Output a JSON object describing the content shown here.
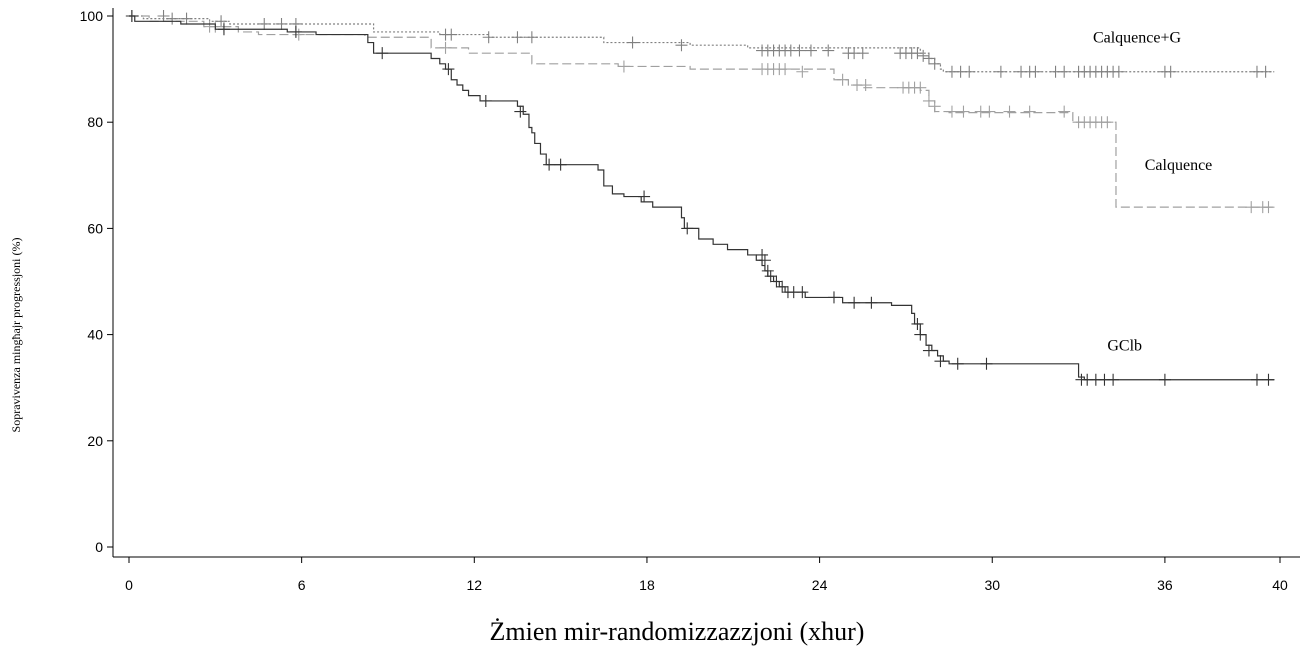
{
  "chart_data": {
    "type": "line",
    "title": "",
    "xlabel": "Żmien mir-randomizzazzjoni (xhur)",
    "ylabel": "Sopravivenza mingħajr progressjoni (%)",
    "xlim": [
      0,
      40
    ],
    "ylim": [
      0,
      100
    ],
    "xticks": [
      0,
      6,
      12,
      18,
      24,
      30,
      36,
      40
    ],
    "yticks": [
      0,
      20,
      40,
      60,
      80,
      100
    ],
    "grid": false,
    "legend": "inline labels next to each curve",
    "series": [
      {
        "name": "Calquence+G",
        "color": "#808080",
        "dash": "dotted",
        "steps": [
          [
            0,
            100
          ],
          [
            0.5,
            99.5
          ],
          [
            2.8,
            99
          ],
          [
            3.5,
            98.5
          ],
          [
            8.5,
            97
          ],
          [
            10.8,
            96.5
          ],
          [
            12.5,
            96
          ],
          [
            16.5,
            95
          ],
          [
            19.5,
            94.5
          ],
          [
            21.5,
            94
          ],
          [
            27.5,
            93
          ],
          [
            27.8,
            92
          ],
          [
            28.0,
            91
          ],
          [
            28.2,
            90
          ],
          [
            28.3,
            89.5
          ],
          [
            39.8,
            89.5
          ]
        ],
        "censors": [
          [
            0.1,
            100
          ],
          [
            1.2,
            100
          ],
          [
            1.5,
            99.5
          ],
          [
            2.0,
            99.5
          ],
          [
            3.2,
            99
          ],
          [
            4.7,
            98.5
          ],
          [
            5.3,
            98.5
          ],
          [
            5.8,
            98.5
          ],
          [
            11.0,
            96.5
          ],
          [
            11.2,
            96.5
          ],
          [
            12.5,
            96
          ],
          [
            13.5,
            96
          ],
          [
            14.0,
            96
          ],
          [
            17.5,
            95
          ],
          [
            19.2,
            94.5
          ],
          [
            22.0,
            93.5
          ],
          [
            22.2,
            93.5
          ],
          [
            22.4,
            93.5
          ],
          [
            22.6,
            93.5
          ],
          [
            22.8,
            93.5
          ],
          [
            23.0,
            93.5
          ],
          [
            23.3,
            93.5
          ],
          [
            23.7,
            93.5
          ],
          [
            24.3,
            93.5
          ],
          [
            25.0,
            93
          ],
          [
            25.2,
            93
          ],
          [
            25.5,
            93
          ],
          [
            26.8,
            93
          ],
          [
            27.0,
            93
          ],
          [
            27.2,
            93
          ],
          [
            27.4,
            93
          ],
          [
            27.6,
            92.5
          ],
          [
            27.8,
            92
          ],
          [
            28.0,
            91
          ],
          [
            28.6,
            89.5
          ],
          [
            28.9,
            89.5
          ],
          [
            29.2,
            89.5
          ],
          [
            30.3,
            89.5
          ],
          [
            31.0,
            89.5
          ],
          [
            31.3,
            89.5
          ],
          [
            31.5,
            89.5
          ],
          [
            32.2,
            89.5
          ],
          [
            32.5,
            89.5
          ],
          [
            33.0,
            89.5
          ],
          [
            33.2,
            89.5
          ],
          [
            33.4,
            89.5
          ],
          [
            33.6,
            89.5
          ],
          [
            33.8,
            89.5
          ],
          [
            34.0,
            89.5
          ],
          [
            34.2,
            89.5
          ],
          [
            34.4,
            89.5
          ],
          [
            36.0,
            89.5
          ],
          [
            36.2,
            89.5
          ],
          [
            39.2,
            89.5
          ],
          [
            39.5,
            89.5
          ]
        ]
      },
      {
        "name": "Calquence",
        "color": "#a0a0a0",
        "dash": "dashed",
        "steps": [
          [
            0,
            100
          ],
          [
            0.7,
            99
          ],
          [
            2.6,
            98
          ],
          [
            3.8,
            97
          ],
          [
            4.5,
            96.5
          ],
          [
            8.2,
            96
          ],
          [
            10.5,
            94
          ],
          [
            11.8,
            93
          ],
          [
            14.0,
            91
          ],
          [
            17.0,
            90.5
          ],
          [
            19.5,
            90
          ],
          [
            24.5,
            88
          ],
          [
            25.0,
            87
          ],
          [
            25.5,
            86.5
          ],
          [
            27.5,
            86
          ],
          [
            27.8,
            84
          ],
          [
            28.0,
            82
          ],
          [
            28.5,
            81.8
          ],
          [
            32.8,
            80
          ],
          [
            34.3,
            80
          ],
          [
            34.3,
            64
          ],
          [
            39.8,
            64
          ]
        ],
        "censors": [
          [
            2.8,
            98
          ],
          [
            3.0,
            98
          ],
          [
            3.3,
            98
          ],
          [
            5.9,
            96.5
          ],
          [
            11.0,
            94
          ],
          [
            17.2,
            90.5
          ],
          [
            22.0,
            90
          ],
          [
            22.2,
            90
          ],
          [
            22.4,
            90
          ],
          [
            22.6,
            90
          ],
          [
            22.8,
            90
          ],
          [
            23.4,
            89.5
          ],
          [
            24.8,
            88
          ],
          [
            25.3,
            87
          ],
          [
            25.6,
            87
          ],
          [
            26.9,
            86.5
          ],
          [
            27.1,
            86.5
          ],
          [
            27.3,
            86.5
          ],
          [
            27.5,
            86.5
          ],
          [
            27.8,
            84
          ],
          [
            28.0,
            83
          ],
          [
            28.6,
            82
          ],
          [
            29.0,
            82
          ],
          [
            29.6,
            82
          ],
          [
            29.9,
            82
          ],
          [
            30.6,
            82
          ],
          [
            31.3,
            82
          ],
          [
            32.5,
            82
          ],
          [
            33.0,
            80
          ],
          [
            33.2,
            80
          ],
          [
            33.4,
            80
          ],
          [
            33.6,
            80
          ],
          [
            33.8,
            80
          ],
          [
            34.0,
            80
          ],
          [
            39.0,
            64
          ],
          [
            39.4,
            64
          ],
          [
            39.6,
            64
          ]
        ]
      },
      {
        "name": "GClb",
        "color": "#333333",
        "dash": "solid",
        "steps": [
          [
            0,
            100
          ],
          [
            0.2,
            99
          ],
          [
            1.8,
            98.5
          ],
          [
            3.0,
            97.5
          ],
          [
            5.5,
            97
          ],
          [
            6.5,
            96.5
          ],
          [
            8.3,
            95
          ],
          [
            8.5,
            93
          ],
          [
            10.5,
            92
          ],
          [
            10.8,
            91
          ],
          [
            11.0,
            90
          ],
          [
            11.2,
            88
          ],
          [
            11.4,
            87
          ],
          [
            11.6,
            86
          ],
          [
            11.8,
            85
          ],
          [
            12.2,
            84
          ],
          [
            13.5,
            83
          ],
          [
            13.7,
            81.5
          ],
          [
            13.9,
            79
          ],
          [
            14.0,
            78
          ],
          [
            14.1,
            76
          ],
          [
            14.3,
            74
          ],
          [
            14.5,
            72
          ],
          [
            16.3,
            71
          ],
          [
            16.5,
            68
          ],
          [
            16.8,
            66.5
          ],
          [
            17.2,
            66
          ],
          [
            17.8,
            65
          ],
          [
            18.2,
            64
          ],
          [
            19.2,
            62
          ],
          [
            19.3,
            60
          ],
          [
            19.8,
            58
          ],
          [
            20.3,
            57
          ],
          [
            20.8,
            56
          ],
          [
            21.5,
            55
          ],
          [
            21.8,
            54
          ],
          [
            22.0,
            53
          ],
          [
            22.1,
            52
          ],
          [
            22.2,
            51
          ],
          [
            22.4,
            50
          ],
          [
            22.6,
            49
          ],
          [
            22.8,
            48
          ],
          [
            23.5,
            47
          ],
          [
            24.8,
            46
          ],
          [
            26.5,
            45.5
          ],
          [
            27.2,
            44
          ],
          [
            27.3,
            42
          ],
          [
            27.5,
            40
          ],
          [
            27.7,
            38
          ],
          [
            27.9,
            37
          ],
          [
            28.1,
            36
          ],
          [
            28.3,
            35
          ],
          [
            28.5,
            34.5
          ],
          [
            32.8,
            34.5
          ],
          [
            33.0,
            32
          ],
          [
            33.2,
            31.5
          ],
          [
            39.8,
            31.5
          ]
        ],
        "censors": [
          [
            0.1,
            100
          ],
          [
            3.3,
            97.5
          ],
          [
            5.8,
            97
          ],
          [
            8.8,
            93
          ],
          [
            11.1,
            90
          ],
          [
            12.4,
            84
          ],
          [
            13.6,
            82
          ],
          [
            14.6,
            72
          ],
          [
            15.0,
            72
          ],
          [
            17.9,
            66
          ],
          [
            19.4,
            60
          ],
          [
            22.0,
            55
          ],
          [
            22.1,
            54
          ],
          [
            22.2,
            52
          ],
          [
            22.3,
            51
          ],
          [
            22.5,
            50
          ],
          [
            22.7,
            49
          ],
          [
            22.9,
            48
          ],
          [
            23.1,
            48
          ],
          [
            23.4,
            48
          ],
          [
            24.5,
            47
          ],
          [
            25.2,
            46
          ],
          [
            25.8,
            46
          ],
          [
            27.4,
            42
          ],
          [
            27.5,
            40
          ],
          [
            27.8,
            37
          ],
          [
            28.2,
            35
          ],
          [
            28.8,
            34.5
          ],
          [
            29.8,
            34.5
          ],
          [
            33.1,
            31.5
          ],
          [
            33.3,
            31.5
          ],
          [
            33.6,
            31.5
          ],
          [
            33.9,
            31.5
          ],
          [
            34.2,
            31.5
          ],
          [
            36.0,
            31.5
          ],
          [
            39.2,
            31.5
          ],
          [
            39.6,
            31.5
          ]
        ]
      }
    ],
    "annotations": [
      {
        "text": "Calquence+G",
        "x": 33.5,
        "y": 95
      },
      {
        "text": "Calquence",
        "x": 35.3,
        "y": 71
      },
      {
        "text": "GClb",
        "x": 34.0,
        "y": 37
      }
    ]
  }
}
